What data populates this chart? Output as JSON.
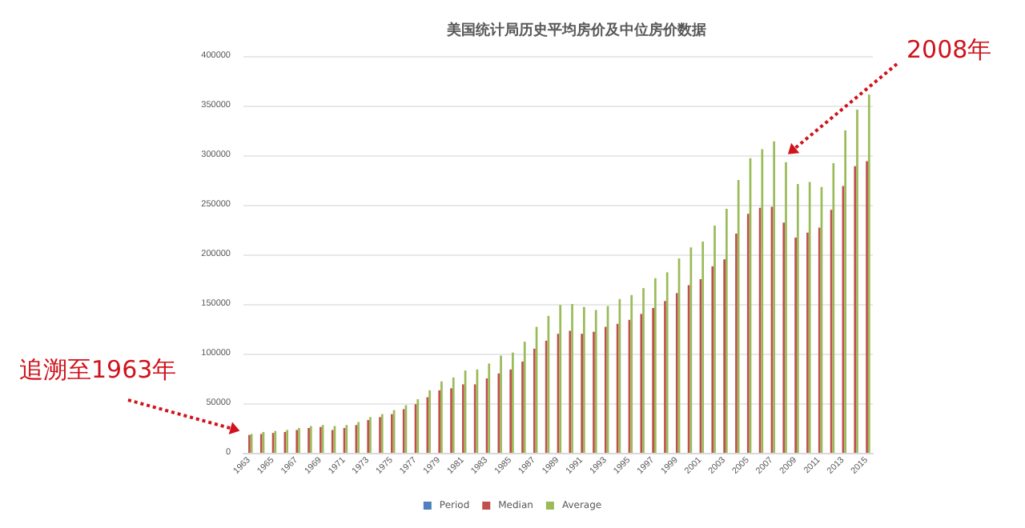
{
  "chart_data": {
    "type": "bar",
    "title": "美国统计局历史平均房价及中位房价数据",
    "categories": [
      "1963",
      null,
      "1965",
      null,
      "1967",
      null,
      "1969",
      null,
      "1971",
      null,
      "1973",
      null,
      "1975",
      null,
      "1977",
      null,
      "1979",
      null,
      "1981",
      null,
      "1983",
      null,
      "1985",
      null,
      "1987",
      null,
      "1989",
      null,
      "1991",
      null,
      "1993",
      null,
      "1995",
      null,
      "1997",
      null,
      "1999",
      null,
      "2001",
      null,
      "2003",
      null,
      "2005",
      null,
      "2007",
      null,
      "2009",
      null,
      "2011",
      null,
      "2013",
      null,
      "2015"
    ],
    "series": [
      {
        "name": "Period",
        "color": "#4f81bd",
        "values": [
          null,
          null,
          null,
          null,
          null,
          null,
          null,
          null,
          null,
          null,
          null,
          null,
          null,
          null,
          null,
          null,
          null,
          null,
          null,
          null,
          null,
          null,
          null,
          null,
          null,
          null,
          null,
          null,
          null,
          null,
          null,
          null,
          null,
          null,
          null,
          null,
          null,
          null,
          null,
          null,
          null,
          null,
          null,
          null,
          null,
          null,
          null,
          null,
          null,
          null,
          null,
          null,
          null
        ]
      },
      {
        "name": "Median",
        "color": "#c0504d",
        "values": [
          18000,
          19000,
          20000,
          21000,
          23000,
          25000,
          26000,
          23000,
          25000,
          28000,
          33000,
          36000,
          39000,
          44000,
          49000,
          56000,
          63000,
          65000,
          69000,
          69000,
          75000,
          80000,
          84000,
          92000,
          105000,
          113000,
          120000,
          123000,
          120000,
          122000,
          127000,
          130000,
          134000,
          140000,
          146000,
          153000,
          161000,
          169000,
          175000,
          188000,
          195000,
          221000,
          241000,
          247000,
          248000,
          232000,
          217000,
          222000,
          227000,
          245000,
          269000,
          289000,
          294000
        ]
      },
      {
        "name": "Average",
        "color": "#9bbb59",
        "values": [
          19000,
          21000,
          22000,
          23000,
          25000,
          27000,
          28000,
          27000,
          28000,
          31000,
          36000,
          39000,
          43000,
          48000,
          54000,
          63000,
          72000,
          76000,
          83000,
          84000,
          90000,
          98000,
          101000,
          112000,
          127000,
          138000,
          149000,
          150000,
          147000,
          144000,
          148000,
          155000,
          159000,
          166000,
          176000,
          182000,
          196000,
          207000,
          213000,
          229000,
          246000,
          275000,
          297000,
          306000,
          314000,
          293000,
          271000,
          273000,
          268000,
          292000,
          325000,
          346000,
          361000
        ]
      }
    ],
    "ylim": [
      0,
      400000
    ],
    "yticks": [
      0,
      {
        "value": 50000,
        "label": "50000"
      },
      {
        "value": 100000,
        "label": "100000"
      },
      {
        "value": 150000,
        "label": "150000"
      },
      {
        "value": 200000,
        "label": "200000"
      },
      {
        "value": 250000,
        "label": "250000"
      },
      {
        "value": 300000,
        "label": "300000"
      },
      {
        "value": 350000,
        "label": "350000"
      },
      {
        "value": 400000,
        "label": "400000"
      }
    ],
    "grid": "y",
    "legend": "bottom",
    "annotations": [
      "追溯至1963年",
      "2008年"
    ]
  }
}
